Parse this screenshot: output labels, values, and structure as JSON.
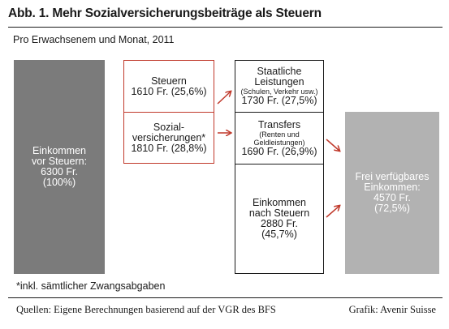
{
  "title": "Abb. 1. Mehr Sozialversicherungsbeiträge als Steuern",
  "subtitle": "Pro Erwachsenem und Monat, 2011",
  "boxes": {
    "gross_income": {
      "lines": [
        "Einkommen",
        "vor Steuern:",
        "6300 Fr.",
        "(100%)"
      ]
    },
    "taxes": {
      "lines": [
        "Steuern",
        "1610 Fr. (25,6%)"
      ]
    },
    "social_insurance": {
      "lines": [
        "Sozial-",
        "versicherungen*",
        "1810 Fr. (28,8%)"
      ]
    },
    "state_services": {
      "lines": [
        "Staatliche",
        "Leistungen"
      ],
      "note": "(Schulen, Verkehr usw.)",
      "value": "1730 Fr. (27,5%)"
    },
    "transfers": {
      "line": "Transfers",
      "note_lines": [
        "(Renten und",
        "Geldleistungen)"
      ],
      "value": "1690 Fr. (26,9%)"
    },
    "income_after_tax": {
      "lines": [
        "Einkommen",
        "nach Steuern",
        "2880 Fr.",
        "(45,7%)"
      ]
    },
    "disposable_income": {
      "lines": [
        "Frei verfügbares",
        "Einkommen:",
        "4570 Fr.",
        "(72,5%)"
      ]
    }
  },
  "colors": {
    "grey_box": "#7b7b7b",
    "light_box": "#b2b2b2",
    "accent_red": "#c0392b",
    "text": "#1a1a1a"
  },
  "footnote": "*inkl. sämtlicher Zwangsabgaben",
  "source": "Quellen: Eigene Berechnungen basierend auf der VGR des BFS",
  "credit": "Grafik: Avenir Suisse"
}
